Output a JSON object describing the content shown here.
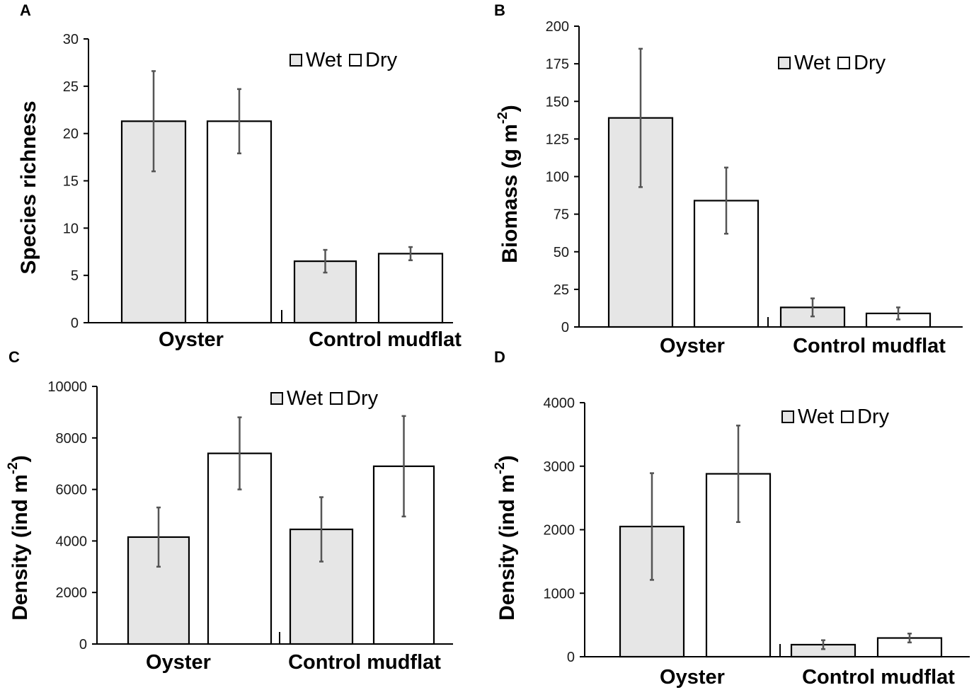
{
  "colors": {
    "wet_fill": "#e6e6e6",
    "dry_fill": "#ffffff",
    "bar_stroke": "#000000",
    "error_bar": "#555555"
  },
  "chart_data": [
    {
      "panel": "A",
      "type": "bar",
      "categories": [
        "Oyster",
        "Control mudflat"
      ],
      "series": [
        {
          "name": "Wet",
          "values": [
            21.3,
            6.5
          ],
          "errors": [
            5.3,
            1.2
          ]
        },
        {
          "name": "Dry",
          "values": [
            21.3,
            7.3
          ],
          "errors": [
            3.4,
            0.7
          ]
        }
      ],
      "ylabel": "Species richness",
      "ylim": [
        0,
        30
      ],
      "yticks": [
        "0",
        "5",
        "10",
        "15",
        "20",
        "25",
        "30"
      ],
      "legend": "top-right"
    },
    {
      "panel": "B",
      "type": "bar",
      "categories": [
        "Oyster",
        "Control mudflat"
      ],
      "series": [
        {
          "name": "Wet",
          "values": [
            139,
            13
          ],
          "errors": [
            46,
            6
          ]
        },
        {
          "name": "Dry",
          "values": [
            84,
            9
          ],
          "errors": [
            22,
            4
          ]
        }
      ],
      "ylabel": "Biomass (g m",
      "ylabel_sup": "-2",
      "ylabel_end": ")",
      "ylim": [
        0,
        200
      ],
      "yticks": [
        "0",
        "25",
        "50",
        "75",
        "100",
        "125",
        "150",
        "175",
        "200"
      ],
      "legend": "top-right"
    },
    {
      "panel": "C",
      "type": "bar",
      "categories": [
        "Oyster",
        "Control mudflat"
      ],
      "series": [
        {
          "name": "Wet",
          "values": [
            4150,
            4450
          ],
          "errors": [
            1150,
            1250
          ]
        },
        {
          "name": "Dry",
          "values": [
            7400,
            6900
          ],
          "errors": [
            1400,
            1950
          ]
        }
      ],
      "ylabel": "Density (ind m",
      "ylabel_sup": "-2",
      "ylabel_end": ")",
      "ylim": [
        0,
        10000
      ],
      "yticks": [
        "0",
        "2000",
        "4000",
        "6000",
        "8000",
        "10000"
      ],
      "legend": "top-right"
    },
    {
      "panel": "D",
      "type": "bar",
      "categories": [
        "Oyster",
        "Control mudflat"
      ],
      "series": [
        {
          "name": "Wet",
          "values": [
            2050,
            190
          ],
          "errors": [
            840,
            70
          ]
        },
        {
          "name": "Dry",
          "values": [
            2880,
            295
          ],
          "errors": [
            760,
            70
          ]
        }
      ],
      "ylabel": "Density (ind m",
      "ylabel_sup": "-2",
      "ylabel_end": ")",
      "ylim": [
        0,
        4000
      ],
      "yticks": [
        "0",
        "1000",
        "2000",
        "3000",
        "4000"
      ],
      "legend": "top-right"
    }
  ]
}
